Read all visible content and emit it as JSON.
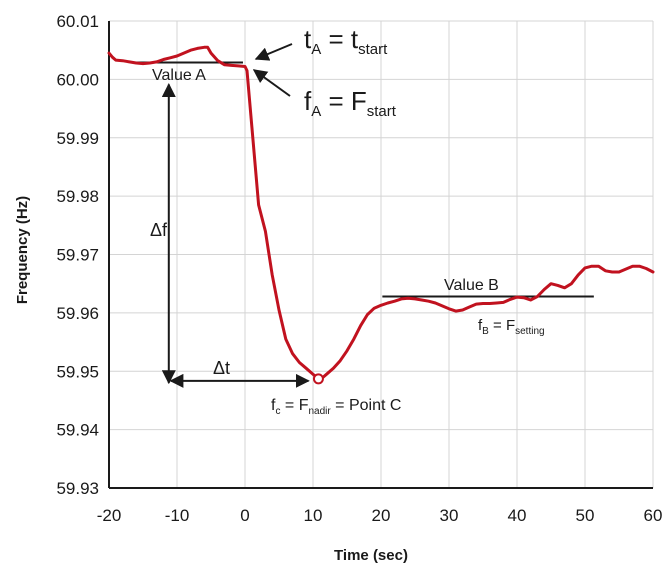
{
  "chart_data": {
    "type": "line",
    "xlabel": "Time (sec)",
    "ylabel": "Frequency (Hz)",
    "xlim": [
      -20,
      60
    ],
    "ylim": [
      59.93,
      60.01
    ],
    "x_ticks": [
      "-20",
      "-10",
      "0",
      "10",
      "20",
      "30",
      "40",
      "50",
      "60"
    ],
    "y_ticks": [
      "59.93",
      "59.94",
      "59.95",
      "59.96",
      "59.97",
      "59.98",
      "59.99",
      "60.00",
      "60.01"
    ],
    "grid": true,
    "colors": {
      "series": "#c1121f",
      "annotation": "#1a1a1a"
    },
    "series": [
      {
        "x": [
          -20,
          -19.5,
          -19,
          -18,
          -17,
          -16,
          -15,
          -14,
          -13,
          -12,
          -11,
          -10,
          -9,
          -8,
          -7,
          -6,
          -5.5,
          -5,
          -4,
          -3,
          -2,
          -1,
          0,
          0.3,
          1,
          2,
          3,
          4,
          5,
          6,
          7,
          8,
          9,
          10,
          10.8,
          11.5,
          12,
          13,
          14,
          15,
          16,
          17,
          18,
          19,
          20,
          21,
          22,
          23,
          24,
          25,
          26,
          27,
          28,
          29,
          30,
          31,
          32,
          33,
          34,
          35,
          36,
          37,
          38,
          39,
          40,
          41,
          42,
          43,
          44,
          45,
          46,
          47,
          48,
          49,
          50,
          51,
          52,
          53,
          54,
          55,
          56,
          57,
          58,
          59,
          60
        ],
        "y": [
          60.0045,
          60.0038,
          60.0033,
          60.0032,
          60.003,
          60.0028,
          60.0027,
          60.0028,
          60.003,
          60.0034,
          60.0037,
          60.004,
          60.0045,
          60.005,
          60.0053,
          60.0055,
          60.0055,
          60.0045,
          60.0032,
          60.0025,
          60.0024,
          60.0023,
          60.0022,
          60.0015,
          59.992,
          59.9785,
          59.974,
          59.9665,
          59.9605,
          59.9555,
          59.953,
          59.9515,
          59.9505,
          59.9495,
          59.9487,
          59.949,
          59.9495,
          59.9505,
          59.9518,
          59.9535,
          59.9555,
          59.9578,
          59.9597,
          59.9608,
          59.9613,
          59.9617,
          59.962,
          59.9624,
          59.9625,
          59.9624,
          59.9622,
          59.962,
          59.9617,
          59.9612,
          59.9607,
          59.9603,
          59.9605,
          59.961,
          59.9615,
          59.9616,
          59.9616,
          59.9617,
          59.9618,
          59.9623,
          59.9627,
          59.9626,
          59.9622,
          59.9628,
          59.964,
          59.965,
          59.9647,
          59.9643,
          59.965,
          59.9665,
          59.9677,
          59.968,
          59.968,
          59.9672,
          59.967,
          59.967,
          59.9675,
          59.968,
          59.968,
          59.9676,
          59.967
        ]
      }
    ],
    "reference_lines": [
      {
        "label": "Value A",
        "x": [
          -16.5,
          -0.3
        ],
        "y": 60.0029
      },
      {
        "label": "Value B",
        "x": [
          20.2,
          51.3
        ],
        "y": 59.9628
      }
    ],
    "point_c": {
      "x": 10.8,
      "y": 59.9487
    },
    "annotations": {
      "t_a": {
        "main": "t",
        "sub": "A",
        "eq": " = t",
        "eq_sub": "start"
      },
      "f_a": {
        "main": "f",
        "sub": "A",
        "eq": " = F",
        "eq_sub": "start"
      },
      "value_a": "Value A",
      "value_b": "Value B",
      "delta_f": "Δf",
      "delta_t": "Δt",
      "f_b": {
        "main": "f",
        "sub": "B",
        "eq": " = F",
        "eq_sub": "setting"
      },
      "f_c": {
        "main": "f",
        "sub": "c",
        "eq": " = F",
        "eq_sub": "nadir",
        "tail": " = Point C"
      }
    }
  }
}
